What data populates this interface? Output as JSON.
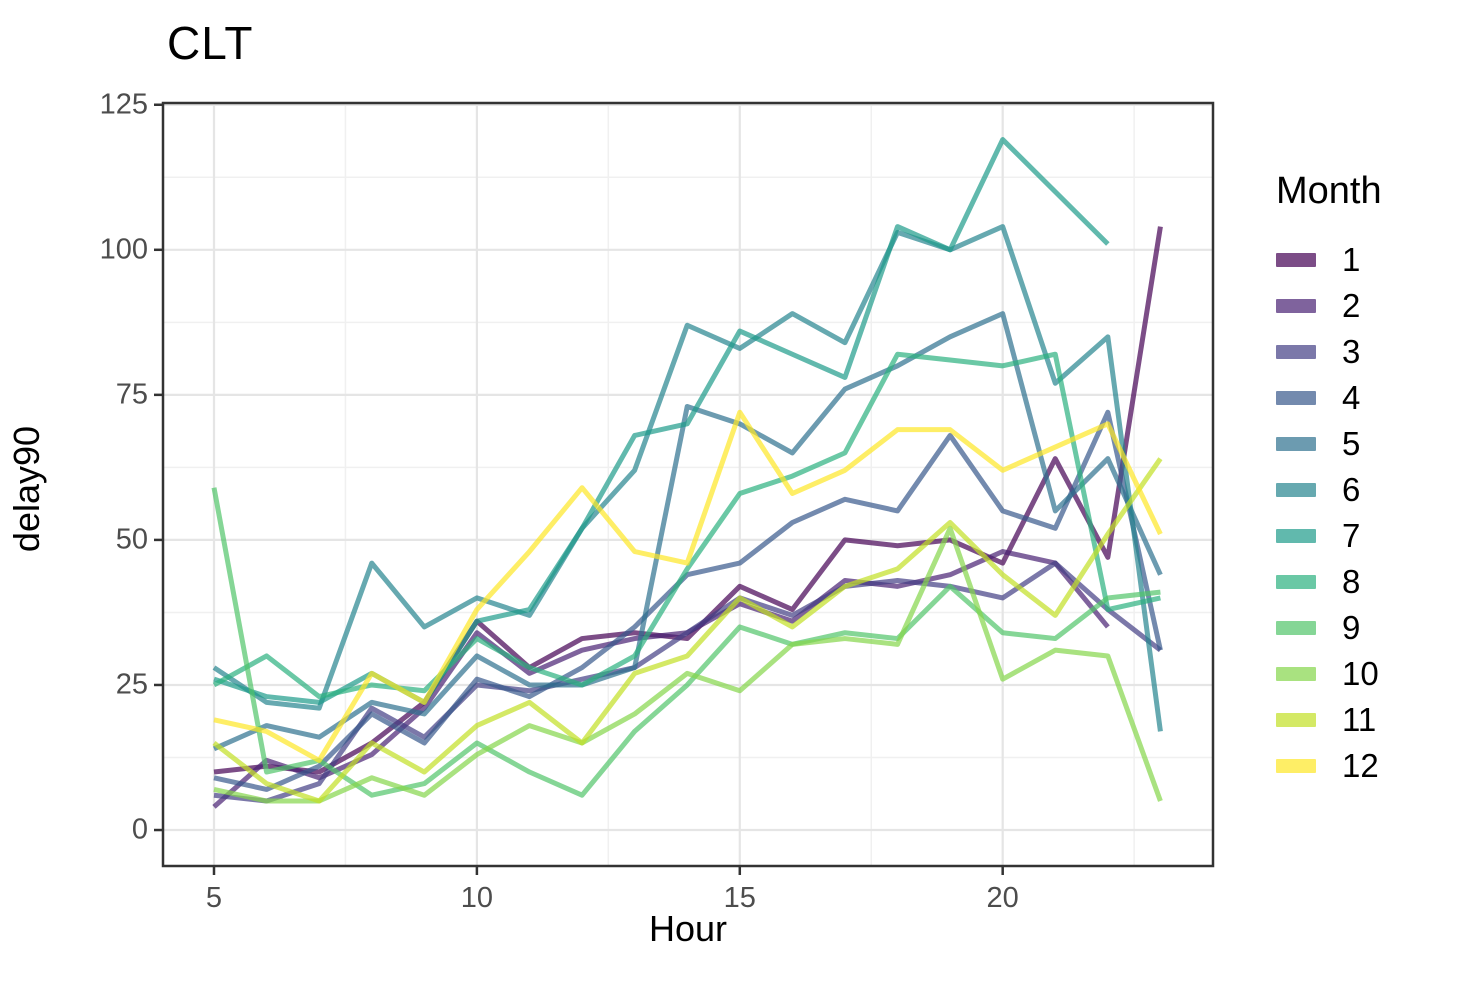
{
  "title": "CLT",
  "axes": {
    "x_label": "Hour",
    "y_label": "delay90",
    "x_ticks": [
      5,
      10,
      15,
      20
    ],
    "x_minor_ticks": [
      7.5,
      12.5,
      17.5,
      22.5
    ],
    "y_ticks": [
      0,
      25,
      50,
      75,
      100,
      125
    ],
    "y_minor_ticks": [
      12.5,
      37.5,
      62.5,
      87.5,
      112.5
    ]
  },
  "legend": {
    "title": "Month",
    "items": [
      {
        "label": "1",
        "color": "#440154"
      },
      {
        "label": "2",
        "color": "#482173"
      },
      {
        "label": "3",
        "color": "#433E85"
      },
      {
        "label": "4",
        "color": "#38598C"
      },
      {
        "label": "5",
        "color": "#2D708E"
      },
      {
        "label": "6",
        "color": "#25858E"
      },
      {
        "label": "7",
        "color": "#1E9B8A"
      },
      {
        "label": "8",
        "color": "#2BB07F"
      },
      {
        "label": "9",
        "color": "#51C56A"
      },
      {
        "label": "10",
        "color": "#85D54A"
      },
      {
        "label": "11",
        "color": "#C2DF23"
      },
      {
        "label": "12",
        "color": "#FDE725"
      }
    ]
  },
  "chart_data": {
    "type": "line",
    "title": "CLT",
    "xlabel": "Hour",
    "ylabel": "delay90",
    "x": [
      5,
      6,
      7,
      8,
      9,
      10,
      11,
      12,
      13,
      14,
      15,
      16,
      17,
      18,
      19,
      20,
      21,
      22,
      23
    ],
    "xlim": [
      4.03,
      24.0
    ],
    "ylim": [
      -6.2,
      125.3
    ],
    "grid": true,
    "legend_position": "right",
    "line_opacity": 0.7,
    "line_width": 5,
    "series": [
      {
        "name": "1",
        "color": "#440154",
        "values": [
          10,
          11,
          10,
          15,
          22,
          36,
          28,
          33,
          34,
          33,
          42,
          38,
          50,
          49,
          50,
          46,
          64,
          47,
          104
        ]
      },
      {
        "name": "2",
        "color": "#482173",
        "values": [
          4,
          12,
          9,
          13,
          21,
          34,
          27,
          31,
          33,
          34,
          39,
          36,
          43,
          42,
          44,
          48,
          46,
          35,
          null
        ]
      },
      {
        "name": "3",
        "color": "#433E85",
        "values": [
          6,
          5,
          8,
          21,
          16,
          25,
          24,
          26,
          28,
          34,
          40,
          37,
          42,
          43,
          42,
          40,
          46,
          38,
          31
        ]
      },
      {
        "name": "4",
        "color": "#38598C",
        "values": [
          9,
          7,
          11,
          20,
          15,
          26,
          23,
          28,
          35,
          44,
          46,
          53,
          57,
          55,
          68,
          55,
          52,
          72,
          31
        ]
      },
      {
        "name": "5",
        "color": "#2D708E",
        "values": [
          14,
          18,
          16,
          22,
          20,
          30,
          25,
          25,
          28,
          73,
          70,
          65,
          76,
          80,
          85,
          89,
          55,
          64,
          44
        ]
      },
      {
        "name": "6",
        "color": "#25858E",
        "values": [
          28,
          22,
          21,
          46,
          35,
          40,
          37,
          52,
          62,
          87,
          83,
          89,
          84,
          103,
          100,
          104,
          77,
          85,
          17
        ]
      },
      {
        "name": "7",
        "color": "#1E9B8A",
        "values": [
          26,
          23,
          22,
          27,
          22,
          36,
          38,
          52,
          68,
          70,
          86,
          82,
          78,
          104,
          100,
          119,
          110,
          101,
          null
        ]
      },
      {
        "name": "8",
        "color": "#2BB07F",
        "values": [
          25,
          30,
          23,
          25,
          24,
          33,
          28,
          25,
          30,
          45,
          58,
          61,
          65,
          82,
          81,
          80,
          82,
          38,
          40
        ]
      },
      {
        "name": "9",
        "color": "#51C56A",
        "values": [
          59,
          10,
          12,
          6,
          8,
          15,
          10,
          6,
          17,
          25,
          35,
          32,
          34,
          33,
          42,
          34,
          33,
          40,
          41
        ]
      },
      {
        "name": "10",
        "color": "#85D54A",
        "values": [
          7,
          5,
          5,
          9,
          6,
          13,
          18,
          15,
          20,
          27,
          24,
          32,
          33,
          32,
          52,
          26,
          31,
          30,
          5
        ]
      },
      {
        "name": "11",
        "color": "#C2DF23",
        "values": [
          15,
          8,
          5,
          15,
          10,
          18,
          22,
          15,
          27,
          30,
          40,
          35,
          42,
          45,
          53,
          44,
          37,
          51,
          64
        ]
      },
      {
        "name": "12",
        "color": "#FDE725",
        "values": [
          19,
          17,
          12,
          27,
          22,
          38,
          48,
          59,
          48,
          46,
          72,
          58,
          62,
          69,
          69,
          62,
          66,
          70,
          51
        ]
      }
    ]
  },
  "style": {
    "panel_border_color": "#333333",
    "major_grid_color": "#e5e5e5",
    "minor_grid_color": "#f0f0f0",
    "tick_color": "#333333",
    "tick_label_color": "#4d4d4d"
  }
}
